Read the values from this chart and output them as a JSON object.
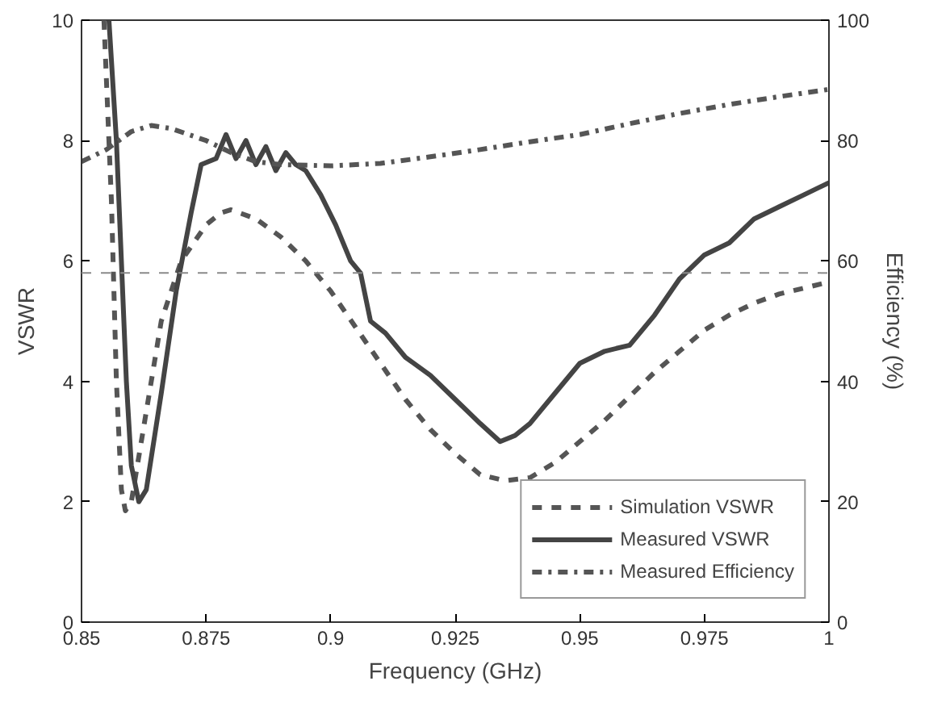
{
  "chart_data": {
    "type": "line",
    "xlabel": "Frequency (GHz)",
    "ylabel": "VSWR",
    "y2label": "Efficiency (%)",
    "xlim": [
      0.85,
      1
    ],
    "xticks": [
      0.85,
      0.875,
      0.9,
      0.925,
      0.95,
      0.975,
      1
    ],
    "ylim": [
      0,
      10
    ],
    "yticks": [
      0,
      2,
      4,
      6,
      8,
      10
    ],
    "y2lim": [
      0,
      100
    ],
    "y2ticks": [
      0,
      20,
      40,
      60,
      80,
      100
    ],
    "grid": false,
    "legend": "bottom right",
    "marker": "none",
    "ref_lines": [
      {
        "axis": "y",
        "value": 5.8,
        "color": "#8a8a8a",
        "line_style": "dashed"
      }
    ],
    "series": [
      {
        "name": "Simulation VSWR",
        "color": "#555555",
        "line_style": "dashed",
        "x": [
          0.8545,
          0.856,
          0.857,
          0.858,
          0.8588,
          0.86,
          0.863,
          0.866,
          0.87,
          0.875,
          0.878,
          0.88,
          0.885,
          0.89,
          0.895,
          0.9,
          0.905,
          0.91,
          0.915,
          0.92,
          0.925,
          0.93,
          0.935,
          0.94,
          0.945,
          0.95,
          0.955,
          0.96,
          0.965,
          0.97,
          0.975,
          0.98,
          0.985,
          0.99,
          0.995,
          1.0
        ],
        "values": [
          10,
          7,
          4,
          2.2,
          1.85,
          2.0,
          3.5,
          5,
          6.0,
          6.6,
          6.8,
          6.85,
          6.7,
          6.4,
          6.0,
          5.5,
          4.9,
          4.3,
          3.7,
          3.2,
          2.8,
          2.45,
          2.35,
          2.4,
          2.65,
          3.0,
          3.35,
          3.75,
          4.15,
          4.5,
          4.85,
          5.1,
          5.3,
          5.45,
          5.55,
          5.65
        ]
      },
      {
        "name": "Measured VSWR",
        "color": "#444444",
        "line_style": "solid",
        "x": [
          0.8555,
          0.857,
          0.858,
          0.859,
          0.86,
          0.8615,
          0.863,
          0.866,
          0.869,
          0.872,
          0.874,
          0.877,
          0.879,
          0.881,
          0.883,
          0.885,
          0.887,
          0.889,
          0.891,
          0.893,
          0.895,
          0.898,
          0.901,
          0.904,
          0.906,
          0.908,
          0.911,
          0.915,
          0.92,
          0.925,
          0.93,
          0.934,
          0.937,
          0.94,
          0.945,
          0.95,
          0.955,
          0.96,
          0.965,
          0.97,
          0.975,
          0.98,
          0.985,
          0.99,
          0.995,
          1.0
        ],
        "values": [
          10,
          8,
          6,
          4,
          2.6,
          2.0,
          2.2,
          3.8,
          5.5,
          6.8,
          7.6,
          7.7,
          8.1,
          7.7,
          8.0,
          7.6,
          7.9,
          7.5,
          7.8,
          7.6,
          7.5,
          7.1,
          6.6,
          6.0,
          5.8,
          5.0,
          4.8,
          4.4,
          4.1,
          3.7,
          3.3,
          3.0,
          3.1,
          3.3,
          3.8,
          4.3,
          4.5,
          4.6,
          5.1,
          5.7,
          6.1,
          6.3,
          6.7,
          6.9,
          7.1,
          7.3
        ]
      },
      {
        "name": "Measured Efficiency",
        "color": "#555555",
        "line_style": "dashdot",
        "axis": "y2",
        "x": [
          0.85,
          0.855,
          0.86,
          0.864,
          0.868,
          0.875,
          0.88,
          0.885,
          0.89,
          0.9,
          0.91,
          0.92,
          0.93,
          0.94,
          0.95,
          0.96,
          0.97,
          0.98,
          0.99,
          1.0
        ],
        "values": [
          76.5,
          78.5,
          81.5,
          82.5,
          82,
          80,
          78,
          76.5,
          76,
          75.8,
          76.2,
          77.3,
          78.5,
          79.8,
          81,
          82.8,
          84.5,
          86,
          87.3,
          88.5
        ]
      }
    ]
  }
}
